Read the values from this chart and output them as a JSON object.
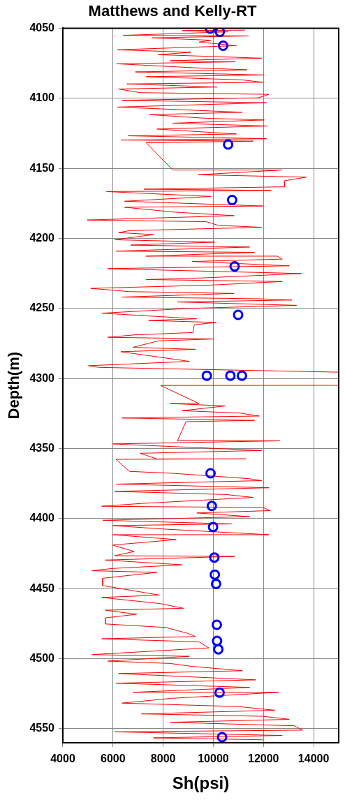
{
  "chart_data": {
    "type": "line",
    "title": "Matthews and Kelly-RT",
    "xlabel": "Sh(psi)",
    "ylabel": "Depth(m)",
    "xlim": [
      4000,
      15000
    ],
    "xticks": [
      4000,
      6000,
      8000,
      10000,
      12000,
      14000
    ],
    "ylim": [
      4560,
      4050
    ],
    "yticks": [
      4050,
      4100,
      4150,
      4200,
      4250,
      4300,
      4350,
      4400,
      4450,
      4500,
      4550
    ],
    "grid": true,
    "series": [
      {
        "color": "#ff0000",
        "marker": "none",
        "x": [
          11260,
          8760,
          10590,
          6410,
          11400,
          7560,
          9910,
          9430,
          10920,
          6170,
          9100,
          7800,
          11930,
          8280,
          10870,
          6150,
          9290,
          11350,
          6890,
          12030,
          7320,
          11160,
          11980,
          6550,
          10150,
          6220,
          7080,
          12220,
          11790,
          6360,
          12120,
          6170,
          11160,
          7460,
          9720,
          12030,
          8380,
          12170,
          7750,
          10920,
          6600,
          12120,
          6310,
          11590,
          7320,
          8380,
          12750,
          9390,
          13710,
          12840,
          12840,
          7230,
          12310,
          5740,
          9910,
          6460,
          11980,
          6460,
          8470,
          10830,
          4970,
          9720,
          10200,
          11930,
          6650,
          6220,
          7610,
          6070,
          10060,
          6700,
          11450,
          6120,
          11640,
          7320,
          12550,
          12750,
          9150,
          13030,
          5790,
          8760,
          13510,
          9630,
          7320,
          12750,
          9960,
          5110,
          6650,
          10830,
          6360,
          11790,
          13130,
          8570,
          13320,
          9050,
          5550,
          9340,
          7420,
          10110,
          9240,
          9190,
          6840,
          5790,
          10010,
          7800,
          6790,
          9290,
          6310,
          9050,
          5020,
          5450,
          15000,
          15000,
          7900,
          9430,
          8280,
          10490,
          8760,
          11070,
          11830,
          6360,
          11640,
          8910,
          8570,
          12650,
          5980,
          11930,
          7080,
          7750,
          11310,
          6120,
          6650,
          8380,
          10490,
          11450,
          11930,
          6120,
          12220,
          6070,
          10490,
          11590,
          7130,
          5550,
          11980,
          12270,
          9340,
          11450,
          5590,
          10730,
          5980,
          8140,
          12220,
          5980,
          8520,
          5980,
          6840,
          6070,
          10870,
          5690,
          8760,
          5980,
          5160,
          7750,
          5590,
          5590,
          7850,
          5550,
          7850,
          8810,
          5690,
          6940,
          5690,
          5690,
          8090,
          9000,
          9290,
          5550,
          9430,
          9820,
          5160,
          9050,
          5790,
          8280,
          9150,
          11160,
          6220,
          11690,
          6120,
          11450,
          6790,
          12600,
          8330,
          6360,
          11020,
          12460,
          7130,
          11980,
          13030,
          8280,
          13230,
          13560,
          6070,
          12750,
          7610,
          11980
        ],
        "values": [
          4051.4,
          4051.7,
          4052.6,
          4055.1,
          4055.5,
          4056.9,
          4058.6,
          4059.9,
          4062.5,
          4065.4,
          4067.2,
          4068.9,
          4071.4,
          4073.2,
          4074.0,
          4075.4,
          4078.3,
          4079.7,
          4081.2,
          4083.4,
          4084.6,
          4086.9,
          4088.6,
          4089.8,
          4092.0,
          4093.4,
          4096.0,
          4097.2,
          4099.7,
          4101.5,
          4103.2,
          4106.3,
          4110.0,
          4111.7,
          4114.3,
          4115.5,
          4117.8,
          4119.8,
          4122.0,
          4125.5,
          4126.8,
          4128.9,
          4129.8,
          4130.6,
          4131.8,
          4151.2,
          4151.2,
          4154.6,
          4156.3,
          4158.9,
          4163.2,
          4164.9,
          4165.8,
          4166.6,
          4170.1,
          4173.5,
          4176.9,
          4177.8,
          4181.3,
          4183.8,
          4186.9,
          4188.1,
          4190.7,
          4192.1,
          4194.5,
          4195.9,
          4197.3,
          4201.0,
          4202.7,
          4204.8,
          4206.2,
          4209.1,
          4210.0,
          4212.7,
          4212.7,
          4214.8,
          4216.5,
          4219.6,
          4221.6,
          4223.0,
          4225.1,
          4228.2,
          4229.4,
          4230.8,
          4233.3,
          4235.7,
          4238.0,
          4239.3,
          4241.9,
          4243.1,
          4244.0,
          4245.4,
          4247.8,
          4250.0,
          4253.4,
          4257.4,
          4258.6,
          4260.0,
          4261.7,
          4267.2,
          4268.9,
          4270.6,
          4271.8,
          4273.2,
          4277.8,
          4279.2,
          4280.9,
          4287.8,
          4290.9,
          4292.1,
          4295.5,
          4304.9,
          4305.0,
          4317.9,
          4317.9,
          4319.6,
          4323.0,
          4324.7,
          4326.8,
          4328.2,
          4329.9,
          4330.8,
          4344.5,
          4344.5,
          4346.7,
          4351.4,
          4353.4,
          4357.4,
          4357.4,
          4357.7,
          4366.3,
          4367.7,
          4370.3,
          4371.6,
          4372.9,
          4375.4,
          4378.0,
          4380.6,
          4382.8,
          4384.9,
          4389.2,
          4391.2,
          4392.1,
          4394.3,
          4396.0,
          4398.6,
          4401.2,
          4403.8,
          4405.0,
          4407.6,
          4411.5,
          4411.5,
          4415.0,
          4418.9,
          4423.5,
          4426.5,
          4427.0,
          4429.6,
          4433.0,
          4435.6,
          4437.2,
          4438.4,
          4442.6,
          4447.8,
          4454.6,
          4456.3,
          4460.6,
          4464.0,
          4465.4,
          4468.3,
          4470.9,
          4475.2,
          4477.7,
          4482.0,
          4484.2,
          4485.8,
          4488.0,
          4492.3,
          4497.1,
          4498.3,
          4501.7,
          4503.4,
          4505.5,
          4508.6,
          4510.6,
          4515.1,
          4517.5,
          4520.5,
          4524.0,
          4524.0,
          4528.3,
          4531.7,
          4534.2,
          4536.8,
          4539.4,
          4541.1,
          4543.3,
          4545.4,
          4547.9,
          4551.0,
          4552.2,
          4554.8,
          4556.5,
          4557.9
        ]
      },
      {
        "type": "scatter",
        "color": "#0000ff",
        "marker": "circle",
        "x": [
          9870,
          10260,
          10390,
          10590,
          10750,
          10850,
          10990,
          9740,
          10680,
          11140,
          9890,
          9940,
          9990,
          10040,
          10060,
          10110,
          10140,
          10150,
          10200,
          10250,
          10350
        ],
        "values": [
          4050.3,
          4052.6,
          4062.5,
          4133,
          4172.6,
          4220,
          4254.6,
          4298,
          4298,
          4298,
          4367.7,
          4391,
          4406,
          4427.8,
          4440,
          4446.6,
          4475.8,
          4487.3,
          4493.3,
          4524.2,
          4556
        ]
      }
    ]
  }
}
